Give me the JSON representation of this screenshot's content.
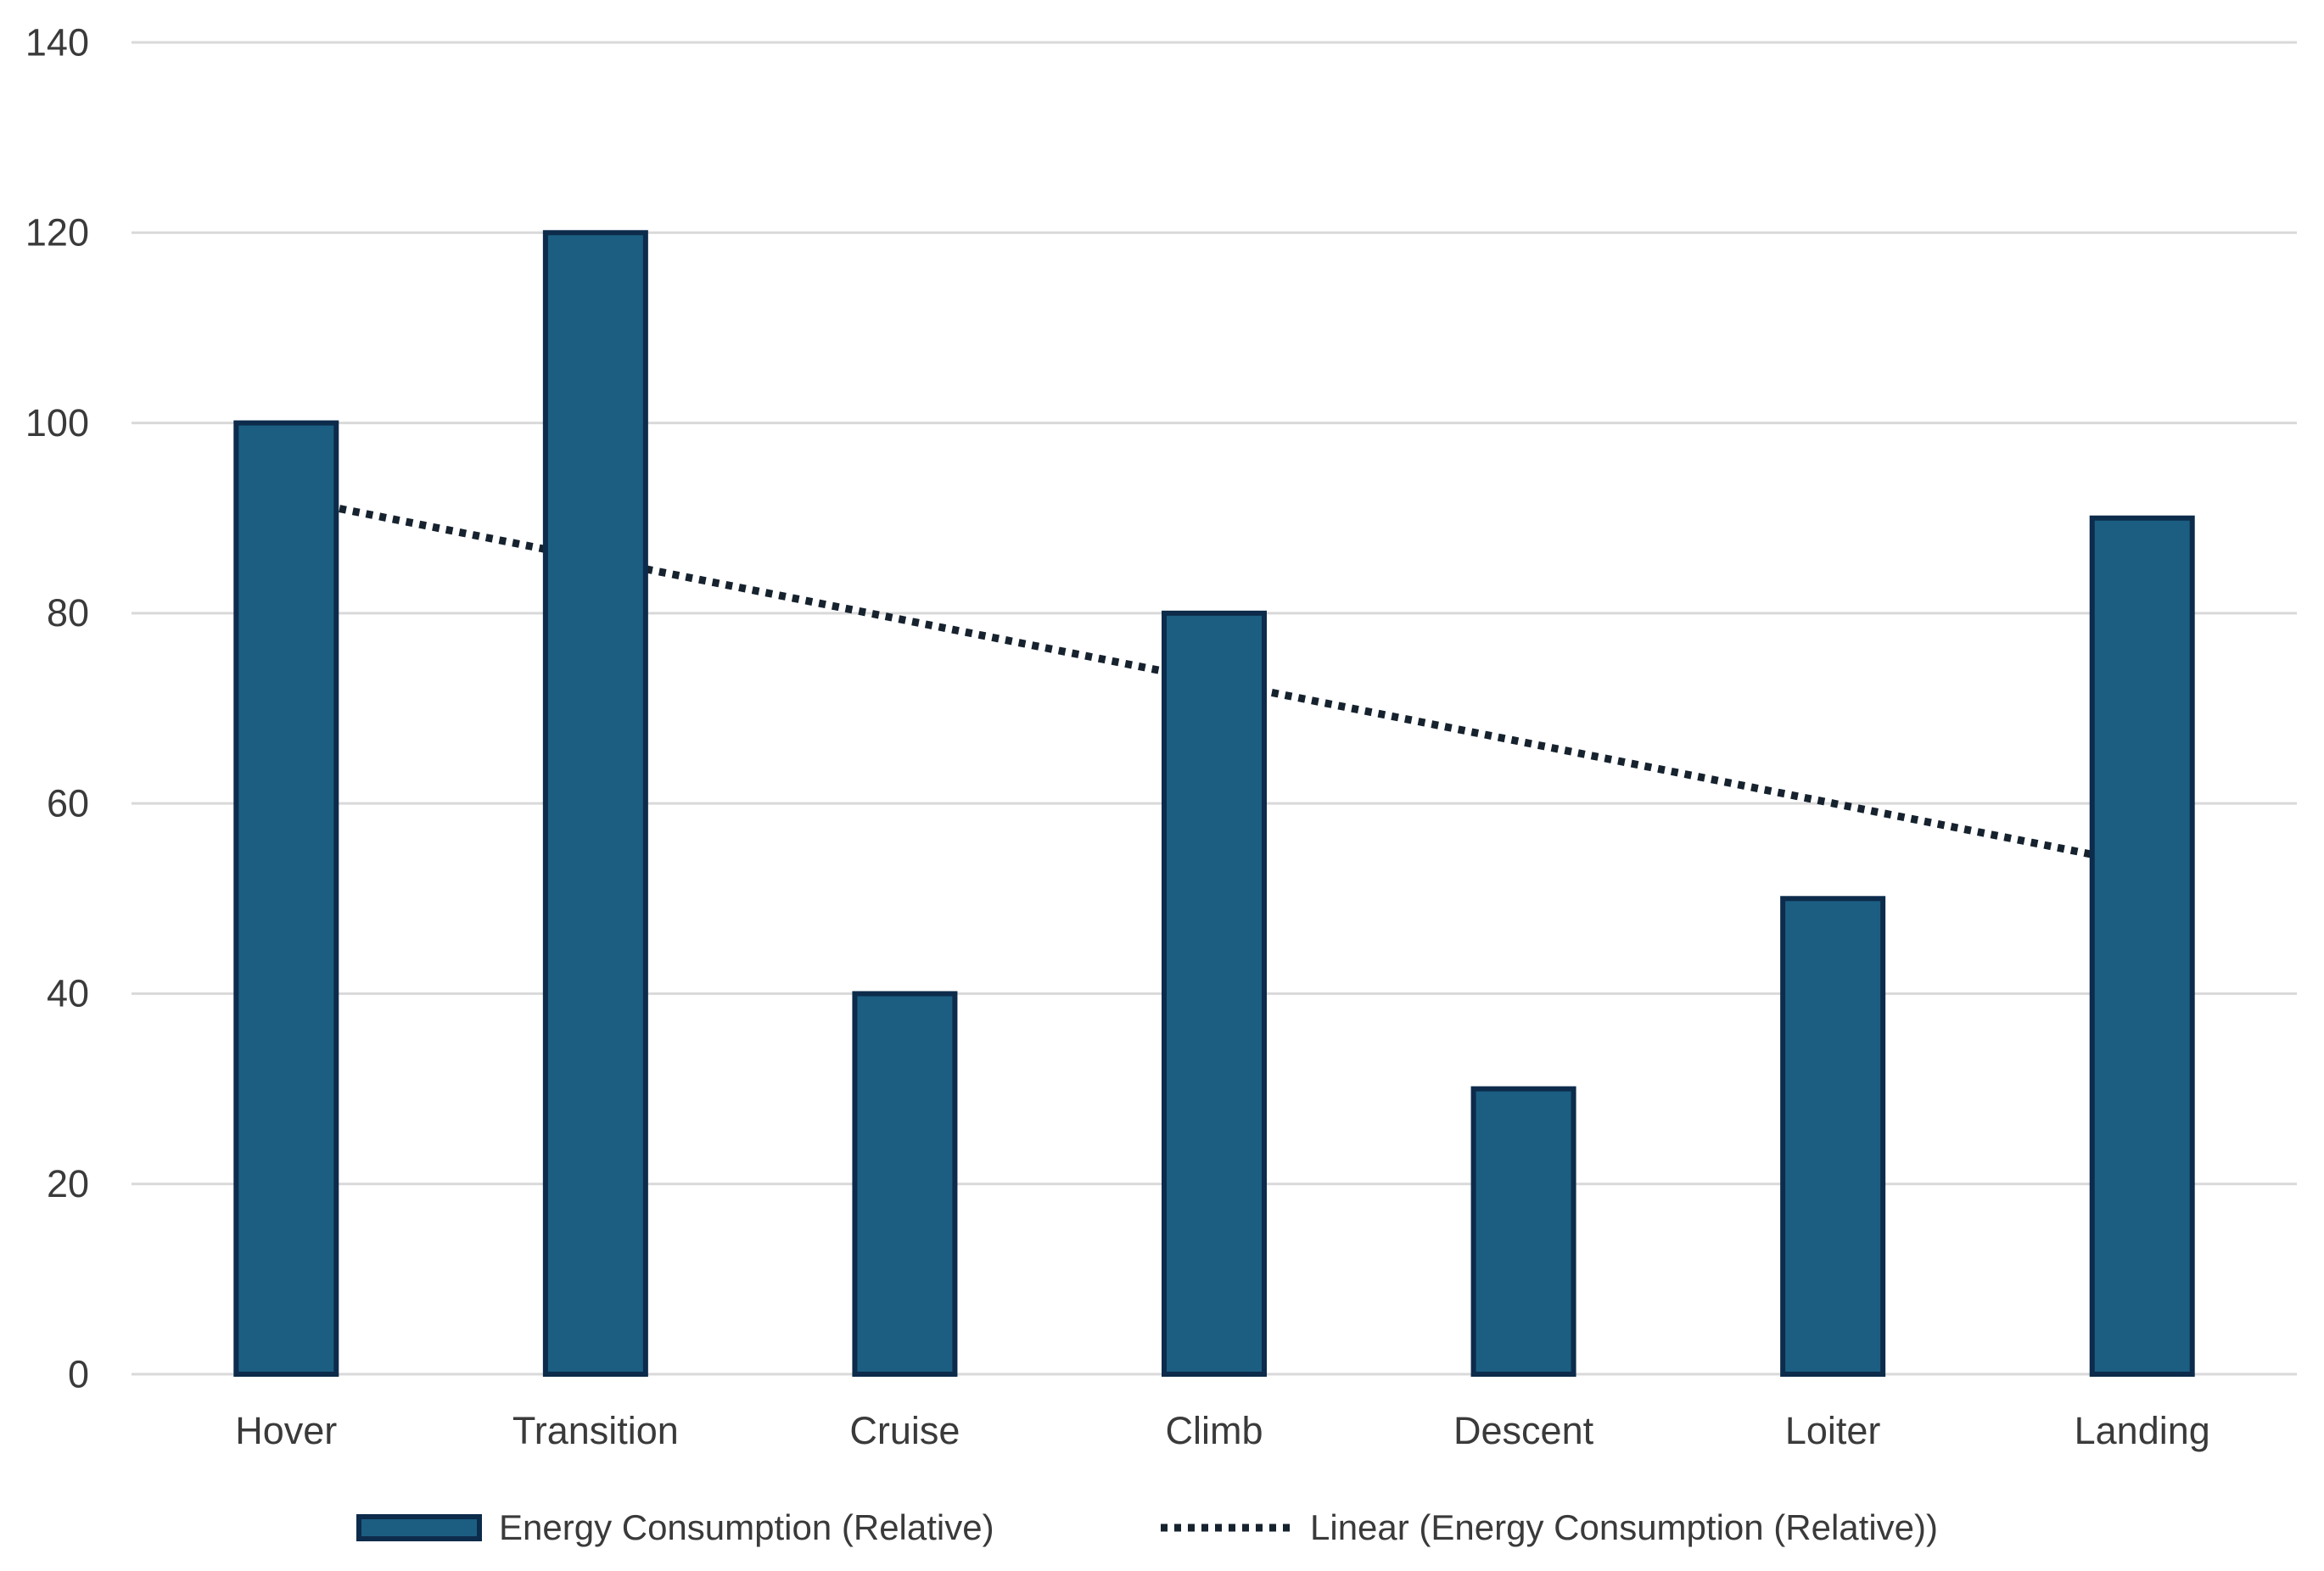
{
  "chart_data": {
    "type": "bar",
    "title": "",
    "xlabel": "",
    "ylabel": "",
    "categories": [
      "Hover",
      "Transition",
      "Cruise",
      "Climb",
      "Descent",
      "Loiter",
      "Landing"
    ],
    "series": [
      {
        "name": "Energy Consumption (Relative)",
        "values": [
          100,
          120,
          40,
          80,
          30,
          50,
          90
        ]
      }
    ],
    "trendline": {
      "name": "Linear (Energy Consumption (Relative))",
      "style": "dotted",
      "start_value": 92.1,
      "end_value": 53.6
    },
    "ylim": [
      0,
      140
    ],
    "ytick_step": 20,
    "ytick_labels": [
      "0",
      "20",
      "40",
      "60",
      "80",
      "100",
      "120",
      "140"
    ],
    "grid": true,
    "legend_position": "bottom",
    "colors": {
      "bar_fill": "#1b5e82",
      "bar_border": "#0d2b4b",
      "trendline": "#16222e",
      "gridline": "#d9d9d9",
      "text": "#3a3a3a",
      "background": "#ffffff"
    }
  },
  "legend": {
    "items": [
      {
        "label": "Energy Consumption (Relative)",
        "swatch": "bar"
      },
      {
        "label": "Linear (Energy Consumption (Relative))",
        "swatch": "dotted-line"
      }
    ]
  }
}
